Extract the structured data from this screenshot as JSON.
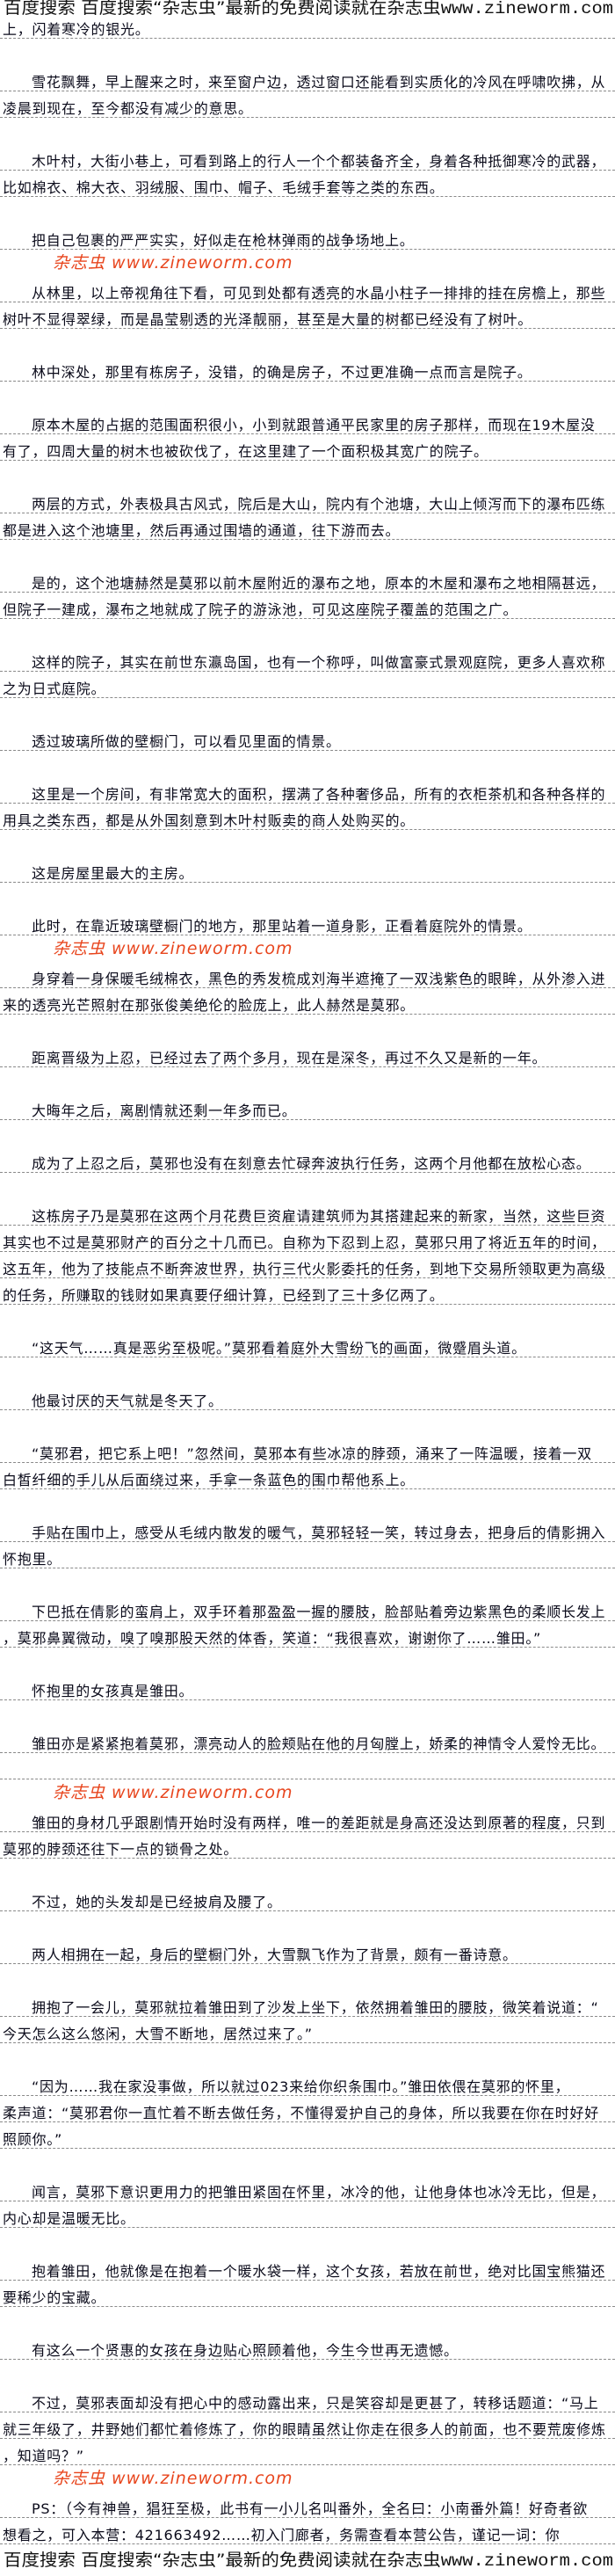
{
  "banner": {
    "prefix": "百度搜索 百度搜索“杂志虫”最新的免费阅读就在杂志虫",
    "url": "www.zineworm.com"
  },
  "watermark": {
    "text": "杂志虫 www.zineworm.com",
    "color": "#e8461e"
  },
  "paragraphs": [
    {
      "indent": false,
      "lines": [
        "上，闪着寒冷的银光。"
      ]
    },
    {
      "indent": true,
      "lines": [
        "雪花飘舞，早上醒来之时，来至窗户边，透过窗口还能看到实质化的冷风在呼啸吹拂，从",
        "凌晨到现在，至今都没有减少的意思。"
      ]
    },
    {
      "indent": true,
      "lines": [
        "木叶村，大街小巷上，可看到路上的行人一个个都装备齐全，身着各种抵御寒冷的武器，",
        "比如棉衣、棉大衣、羽绒服、围巾、帽子、毛绒手套等之类的东西。"
      ]
    },
    {
      "indent": true,
      "lines": [
        "把自己包裹的严严实实，好似走在枪林弹雨的战争场地上。"
      ]
    },
    {
      "indent": true,
      "lines": [
        "从林里，以上帝视角往下看，可见到处都有透亮的水晶小柱子一排排的挂在房檐上，那些",
        "树叶不显得翠绿，而是晶莹剔透的光泽靓丽，甚至是大量的树都已经没有了树叶。"
      ]
    },
    {
      "indent": true,
      "lines": [
        "林中深处，那里有栋房子，没错，的确是房子，不过更准确一点而言是院子。"
      ]
    },
    {
      "indent": true,
      "lines": [
        "原本木屋的占据的范围面积很小，小到就跟普通平民家里的房子那样，而现在19木屋没",
        "有了，四周大量的树木也被砍伐了，在这里建了一个面积极其宽广的院子。"
      ]
    },
    {
      "indent": true,
      "lines": [
        "两层的方式，外表极具古风式，院后是大山，院内有个池塘，大山上倾泻而下的瀑布匹练",
        "都是进入这个池塘里，然后再通过围墙的通道，往下游而去。"
      ]
    },
    {
      "indent": true,
      "lines": [
        "是的，这个池塘赫然是莫邪以前木屋附近的瀑布之地，原本的木屋和瀑布之地相隔甚远，",
        "但院子一建成，瀑布之地就成了院子的游泳池，可见这座院子覆盖的范围之广。"
      ]
    },
    {
      "indent": true,
      "lines": [
        "这样的院子，其实在前世东瀛岛国，也有一个称呼，叫做富豪式景观庭院，更多人喜欢称",
        "之为日式庭院。"
      ]
    },
    {
      "indent": true,
      "lines": [
        "透过玻璃所做的壁橱门，可以看见里面的情景。"
      ]
    },
    {
      "indent": true,
      "lines": [
        "这里是一个房间，有非常宽大的面积，摆满了各种奢侈品，所有的衣柜茶机和各种各样的",
        "用具之类东西，都是从外国刻意到木叶村贩卖的商人处购买的。"
      ]
    },
    {
      "indent": true,
      "lines": [
        "这是房屋里最大的主房。"
      ]
    },
    {
      "indent": true,
      "lines": [
        "此时，在靠近玻璃壁橱门的地方，那里站着一道身影，正看着庭院外的情景。"
      ]
    },
    {
      "indent": true,
      "lines": [
        "身穿着一身保暖毛绒棉衣，黑色的秀发梳成刘海半遮掩了一双浅紫色的眼眸，从外渗入进",
        "来的透亮光芒照射在那张俊美绝伦的脸庞上，此人赫然是莫邪。"
      ]
    },
    {
      "indent": true,
      "lines": [
        "距离晋级为上忍，已经过去了两个多月，现在是深冬，再过不久又是新的一年。"
      ]
    },
    {
      "indent": true,
      "lines": [
        "大晦年之后，离剧情就还剩一年多而已。"
      ]
    },
    {
      "indent": true,
      "lines": [
        "成为了上忍之后，莫邪也没有在刻意去忙碌奔波执行任务，这两个月他都在放松心态。"
      ]
    },
    {
      "indent": true,
      "lines": [
        "这栋房子乃是莫邪在这两个月花费巨资雇请建筑师为其搭建起来的新家，当然，这些巨资",
        "其实也不过是莫邪财产的百分之十几而已。自称为下忍到上忍，莫邪只用了将近五年的时间，",
        "这五年，他为了技能点不断奔波世界，执行三代火影委托的任务，到地下交易所领取更为高级",
        "的任务，所赚取的钱财如果真要仔细计算，已经到了三十多亿两了。"
      ]
    },
    {
      "indent": true,
      "lines": [
        "“这天气……真是恶劣至极呢。”莫邪看着庭外大雪纷飞的画面，微蹙眉头道。"
      ]
    },
    {
      "indent": true,
      "lines": [
        "他最讨厌的天气就是冬天了。"
      ]
    },
    {
      "indent": true,
      "lines": [
        "“莫邪君，把它系上吧！”忽然间，莫邪本有些冰凉的脖颈，涌来了一阵温暖，接着一双",
        "白皙纤细的手儿从后面绕过来，手拿一条蓝色的围巾帮他系上。"
      ]
    },
    {
      "indent": true,
      "lines": [
        "手贴在围巾上，感受从毛绒内散发的暖气，莫邪轻轻一笑，转过身去，把身后的倩影拥入",
        "怀抱里。"
      ]
    },
    {
      "indent": true,
      "lines": [
        "下巴抵在倩影的蛮肩上，双手环着那盈盈一握的腰肢，脸部贴着旁边紫黑色的柔顺长发上",
        "，莫邪鼻翼微动，嗅了嗅那股天然的体香，笑道：“我很喜欢，谢谢你了……雏田。”"
      ]
    },
    {
      "indent": true,
      "lines": [
        "怀抱里的女孩真是雏田。"
      ]
    },
    {
      "indent": true,
      "lines": [
        "雏田亦是紧紧抱着莫邪，漂亮动人的脸颊贴在他的月匈膛上，娇柔的神情令人爱怜无比。",
        ""
      ]
    },
    {
      "indent": true,
      "lines": [
        "雏田的身材几乎跟剧情开始时没有两样，唯一的差距就是身高还没达到原著的程度，只到",
        "莫邪的脖颈还往下一点的锁骨之处。"
      ]
    },
    {
      "indent": true,
      "lines": [
        "不过，她的头发却是已经披肩及腰了。"
      ]
    },
    {
      "indent": true,
      "lines": [
        "两人相拥在一起，身后的壁橱门外，大雪飘飞作为了背景，颇有一番诗意。"
      ]
    },
    {
      "indent": true,
      "lines": [
        "拥抱了一会儿，莫邪就拉着雏田到了沙发上坐下，依然拥着雏田的腰肢，微笑着说道：“",
        "今天怎么这么悠闲，大雪不断地，居然过来了。”"
      ]
    },
    {
      "indent": true,
      "lines": [
        "“因为……我在家没事做，所以就过023来给你织条围巾。”雏田依偎在莫邪的怀里，",
        "柔声道：“莫邪君你一直忙着不断去做任务，不懂得爱护自己的身体，所以我要在你在时好好",
        "照顾你。”"
      ]
    },
    {
      "indent": true,
      "lines": [
        "闻言，莫邪下意识更用力的把雏田紧固在怀里，冰冷的他，让他身体也冰冷无比，但是，",
        "内心却是温暖无比。"
      ]
    },
    {
      "indent": true,
      "lines": [
        "抱着雏田，他就像是在抱着一个暖水袋一样，这个女孩，若放在前世，绝对比国宝熊猫还",
        "要稀少的宝藏。"
      ]
    },
    {
      "indent": true,
      "lines": [
        "有这么一个贤惠的女孩在身边贴心照顾着他，今生今世再无遗憾。"
      ]
    },
    {
      "indent": true,
      "lines": [
        "不过，莫邪表面却没有把心中的感动露出来，只是笑容却是更甚了，转移话题道：“马上",
        "就三年级了，井野她们都忙着修炼了，你的眼睛虽然让你走在很多人的前面，也不要荒废修炼",
        "，知道吗？”"
      ]
    },
    {
      "indent": true,
      "lines": [
        "PS：（今有神兽，猖狂至极，此书有一小儿名叫番外，全名曰：小南番外篇！好奇者欲",
        "想看之，可入本营：421663492……初入门廊者，务需查看本营公告，谨记一词：你"
      ]
    }
  ]
}
